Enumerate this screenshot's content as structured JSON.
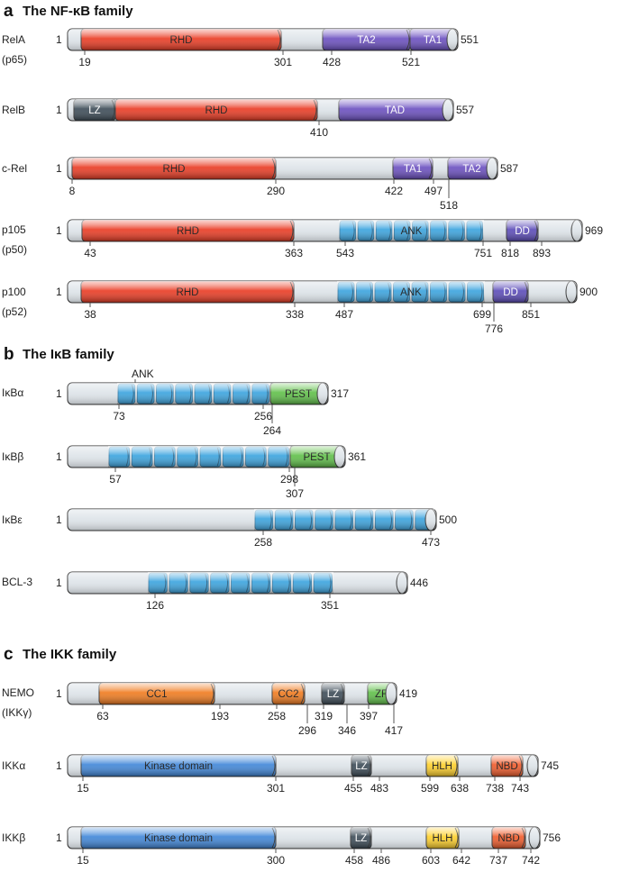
{
  "sections": [
    {
      "letter": "a",
      "title": "The NF-κB family"
    },
    {
      "letter": "b",
      "title": "The IκB family"
    },
    {
      "letter": "c",
      "title": "The IKK family"
    }
  ],
  "colors": {
    "bar": "#dfe5ea",
    "RHD": "#ea3a22",
    "TA": "#6a4ec0",
    "LZdark": "#3b4a56",
    "ANK": "#3aa3de",
    "DD": "#5a4ab8",
    "PEST": "#5fbf48",
    "CC": "#f07a1e",
    "ZF": "#5fbf48",
    "Kinase": "#3f86d8",
    "HLH": "#ffd02a",
    "NBD": "#ef5a2a"
  },
  "proteins": [
    {
      "id": "rela",
      "names": [
        "RelA",
        "(p65)"
      ],
      "start": "1",
      "end": "551",
      "ticks": [
        "19",
        "301",
        "428",
        "521"
      ],
      "domains": [
        {
          "label": "RHD",
          "type": "RHD"
        },
        {
          "label": "TA2",
          "type": "TA"
        },
        {
          "label": "TA1",
          "type": "TA"
        }
      ]
    },
    {
      "id": "relb",
      "names": [
        "RelB"
      ],
      "start": "1",
      "end": "557",
      "ticks": [
        "410"
      ],
      "domains": [
        {
          "label": "LZ",
          "type": "LZdark"
        },
        {
          "label": "RHD",
          "type": "RHD"
        },
        {
          "label": "TAD",
          "type": "TA"
        }
      ]
    },
    {
      "id": "crel",
      "names": [
        "c-Rel"
      ],
      "start": "1",
      "end": "587",
      "ticks": [
        "8",
        "290",
        "422",
        "497",
        "518"
      ],
      "domains": [
        {
          "label": "RHD",
          "type": "RHD"
        },
        {
          "label": "TA1",
          "type": "TA"
        },
        {
          "label": "TA2",
          "type": "TA"
        }
      ]
    },
    {
      "id": "p105",
      "names": [
        "p105",
        "(p50)"
      ],
      "start": "1",
      "end": "969",
      "ticks": [
        "43",
        "363",
        "543",
        "751",
        "818",
        "893"
      ],
      "domains": [
        {
          "label": "RHD",
          "type": "RHD"
        },
        {
          "label": "ANK",
          "type": "ANK"
        },
        {
          "label": "DD",
          "type": "DD"
        }
      ]
    },
    {
      "id": "p100",
      "names": [
        "p100",
        "(p52)"
      ],
      "start": "1",
      "end": "900",
      "ticks": [
        "38",
        "338",
        "487",
        "699",
        "776",
        "851"
      ],
      "domains": [
        {
          "label": "RHD",
          "type": "RHD"
        },
        {
          "label": "ANK",
          "type": "ANK"
        },
        {
          "label": "DD",
          "type": "DD"
        }
      ]
    },
    {
      "id": "ikba",
      "names": [
        "IκBα"
      ],
      "start": "1",
      "end": "317",
      "ticks": [
        "73",
        "256",
        "264"
      ],
      "above": "ANK",
      "domains": [
        {
          "label": "",
          "type": "ANK"
        },
        {
          "label": "PEST",
          "type": "PEST"
        }
      ]
    },
    {
      "id": "ikbb",
      "names": [
        "IκBβ"
      ],
      "start": "1",
      "end": "361",
      "ticks": [
        "57",
        "298",
        "307"
      ],
      "domains": [
        {
          "label": "",
          "type": "ANK"
        },
        {
          "label": "PEST",
          "type": "PEST"
        }
      ]
    },
    {
      "id": "ikbe",
      "names": [
        "IκBε"
      ],
      "start": "1",
      "end": "500",
      "ticks": [
        "258",
        "473"
      ],
      "domains": [
        {
          "label": "",
          "type": "ANK"
        }
      ]
    },
    {
      "id": "bcl3",
      "names": [
        "BCL-3"
      ],
      "start": "1",
      "end": "446",
      "ticks": [
        "126",
        "351"
      ],
      "domains": [
        {
          "label": "",
          "type": "ANK"
        }
      ]
    },
    {
      "id": "nemo",
      "names": [
        "NEMO",
        "(IKKγ)"
      ],
      "start": "1",
      "end": "419",
      "ticks": [
        "63",
        "193",
        "258",
        "296",
        "319",
        "346",
        "397",
        "417"
      ],
      "domains": [
        {
          "label": "CC1",
          "type": "CC"
        },
        {
          "label": "CC2",
          "type": "CC"
        },
        {
          "label": "LZ",
          "type": "LZdark"
        },
        {
          "label": "ZF",
          "type": "ZF"
        }
      ]
    },
    {
      "id": "ikka",
      "names": [
        "IKKα"
      ],
      "start": "1",
      "end": "745",
      "ticks": [
        "15",
        "301",
        "455",
        "483",
        "599",
        "638",
        "738",
        "743"
      ],
      "domains": [
        {
          "label": "Kinase domain",
          "type": "Kinase"
        },
        {
          "label": "LZ",
          "type": "LZdark"
        },
        {
          "label": "HLH",
          "type": "HLH"
        },
        {
          "label": "NBD",
          "type": "NBD"
        }
      ]
    },
    {
      "id": "ikkb",
      "names": [
        "IKKβ"
      ],
      "start": "1",
      "end": "756",
      "ticks": [
        "15",
        "300",
        "458",
        "486",
        "603",
        "642",
        "737",
        "742"
      ],
      "domains": [
        {
          "label": "Kinase domain",
          "type": "Kinase"
        },
        {
          "label": "LZ",
          "type": "LZdark"
        },
        {
          "label": "HLH",
          "type": "HLH"
        },
        {
          "label": "NBD",
          "type": "NBD"
        }
      ]
    }
  ]
}
